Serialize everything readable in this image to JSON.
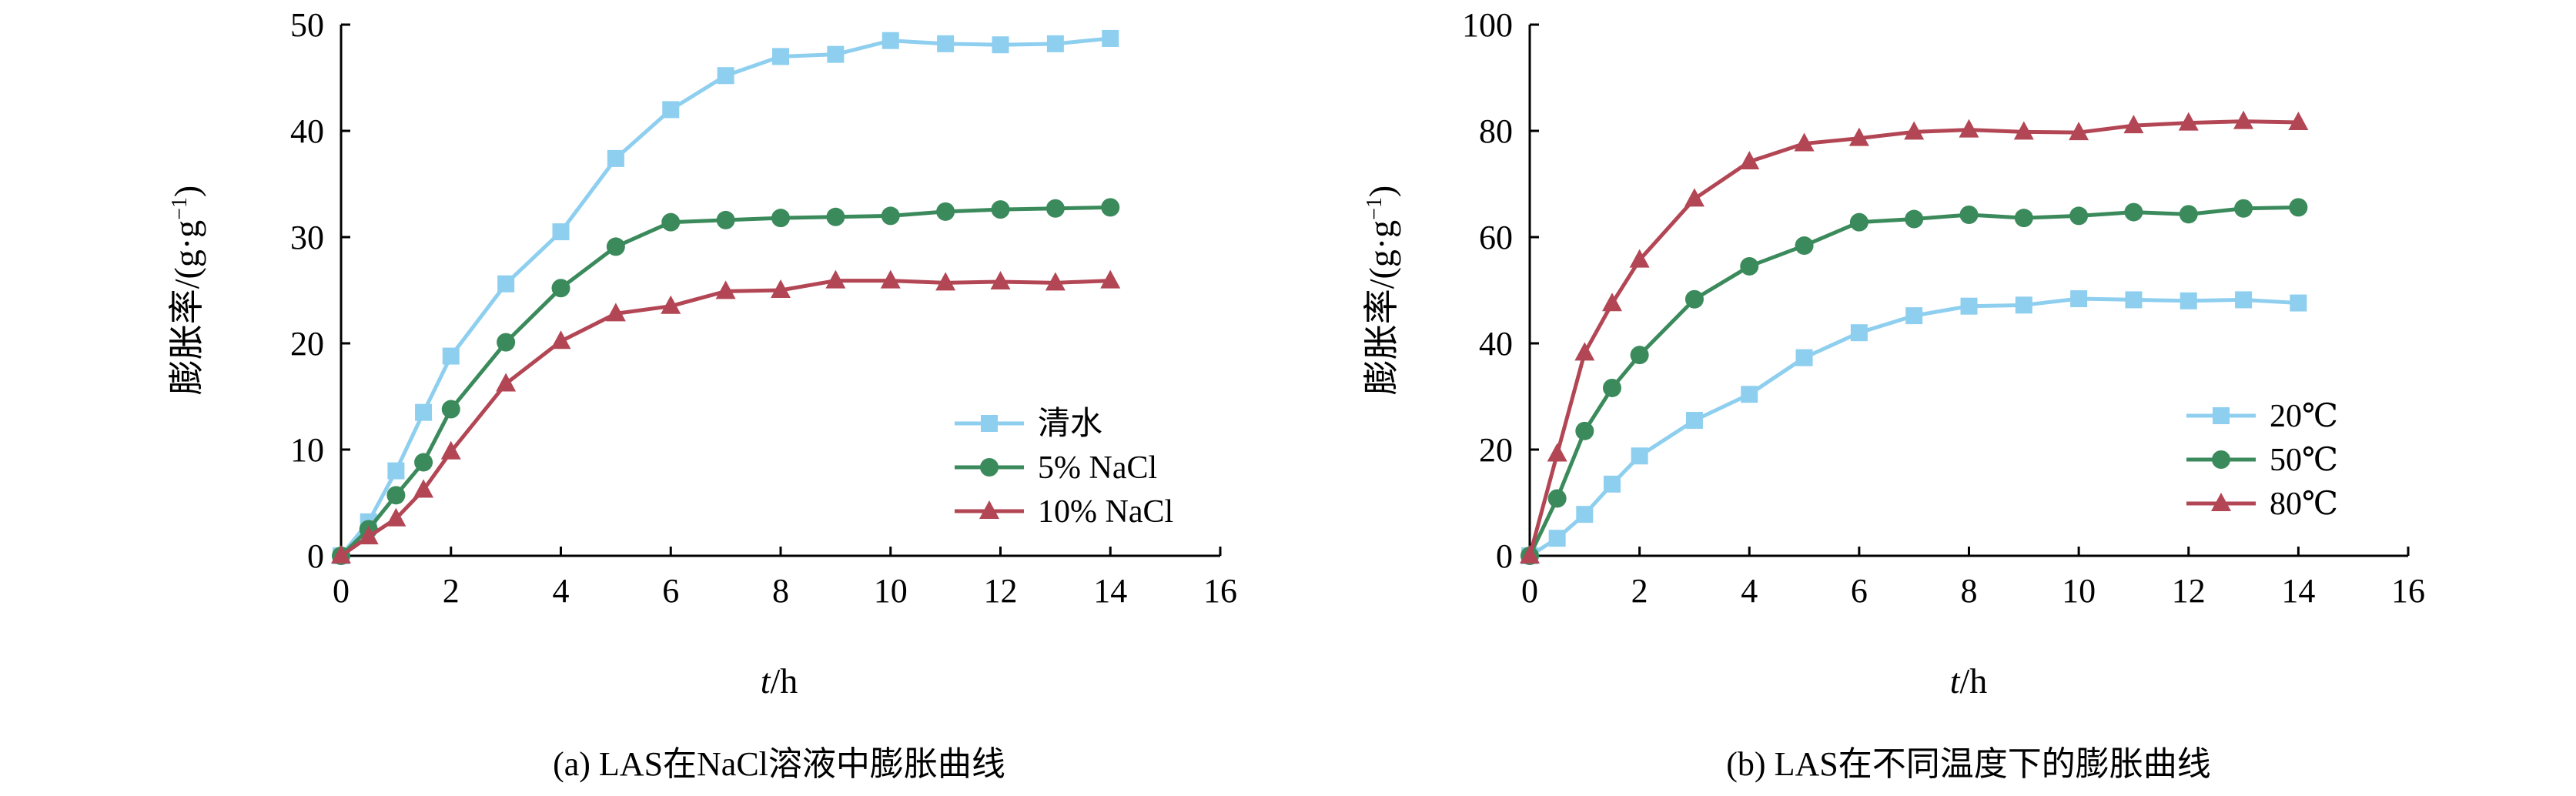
{
  "chart_data": [
    {
      "type": "line",
      "caption": "(a) LAS在NaCl溶液中膨胀曲线",
      "xlabel_italic": "t",
      "xlabel_unit": "/h",
      "ylabel": "膨胀率/(g·g",
      "ylabel_sup": "−1",
      "ylabel_close": ")",
      "xlim": [
        0,
        16
      ],
      "ylim": [
        0,
        50
      ],
      "xticks": [
        0,
        2,
        4,
        6,
        8,
        10,
        12,
        14,
        16
      ],
      "yticks": [
        0,
        10,
        20,
        30,
        40,
        50
      ],
      "legend_position": "lower-right",
      "series": [
        {
          "name": "清水",
          "color": "#8ecfef",
          "marker": "square",
          "x": [
            0,
            0.5,
            1,
            1.5,
            2,
            3,
            4,
            5,
            6,
            7,
            8,
            9,
            10,
            11,
            12,
            13,
            14
          ],
          "y": [
            0,
            3.2,
            8.0,
            13.5,
            18.8,
            25.6,
            30.5,
            37.4,
            42.0,
            45.2,
            47.0,
            47.2,
            48.5,
            48.2,
            48.1,
            48.2,
            48.7
          ]
        },
        {
          "name": "5% NaCl",
          "color": "#3b8a5c",
          "marker": "circle",
          "x": [
            0,
            0.5,
            1,
            1.5,
            2,
            3,
            4,
            5,
            6,
            7,
            8,
            9,
            10,
            11,
            12,
            13,
            14
          ],
          "y": [
            0,
            2.5,
            5.7,
            8.8,
            13.8,
            20.1,
            25.2,
            29.1,
            31.4,
            31.6,
            31.8,
            31.9,
            32.0,
            32.4,
            32.6,
            32.7,
            32.8
          ]
        },
        {
          "name": "10% NaCl",
          "color": "#b34654",
          "marker": "triangle",
          "x": [
            0,
            0.5,
            1,
            1.5,
            2,
            3,
            4,
            5,
            6,
            7,
            8,
            9,
            10,
            11,
            12,
            13,
            14
          ],
          "y": [
            0,
            1.8,
            3.5,
            6.2,
            9.8,
            16.2,
            20.2,
            22.8,
            23.5,
            24.9,
            25.0,
            25.9,
            25.9,
            25.7,
            25.8,
            25.7,
            25.9
          ]
        }
      ]
    },
    {
      "type": "line",
      "caption": "(b) LAS在不同温度下的膨胀曲线",
      "xlabel_italic": "t",
      "xlabel_unit": "/h",
      "ylabel": "膨胀率/(g·g",
      "ylabel_sup": "−1",
      "ylabel_close": ")",
      "xlim": [
        0,
        16
      ],
      "ylim": [
        0,
        100
      ],
      "xticks": [
        0,
        2,
        4,
        6,
        8,
        10,
        12,
        14,
        16
      ],
      "yticks": [
        0,
        20,
        40,
        60,
        80,
        100
      ],
      "legend_position": "lower-right",
      "series": [
        {
          "name": "20℃",
          "color": "#8ecfef",
          "marker": "square",
          "x": [
            0,
            0.5,
            1,
            1.5,
            2,
            3,
            4,
            5,
            6,
            7,
            8,
            9,
            10,
            11,
            12,
            13,
            14
          ],
          "y": [
            0,
            3.3,
            7.8,
            13.5,
            18.8,
            25.5,
            30.4,
            37.3,
            42.0,
            45.2,
            47.0,
            47.2,
            48.4,
            48.2,
            48.0,
            48.2,
            47.6
          ]
        },
        {
          "name": "50℃",
          "color": "#3b8a5c",
          "marker": "circle",
          "x": [
            0,
            0.5,
            1,
            1.5,
            2,
            3,
            4,
            5,
            6,
            7,
            8,
            9,
            10,
            11,
            12,
            13,
            14
          ],
          "y": [
            0,
            10.8,
            23.5,
            31.6,
            37.8,
            48.3,
            54.5,
            58.4,
            62.8,
            63.4,
            64.2,
            63.6,
            64.0,
            64.7,
            64.3,
            65.4,
            65.6
          ]
        },
        {
          "name": "80℃",
          "color": "#b34654",
          "marker": "triangle",
          "x": [
            0,
            0.5,
            1,
            1.5,
            2,
            3,
            4,
            5,
            6,
            7,
            8,
            9,
            10,
            11,
            12,
            13,
            14
          ],
          "y": [
            0,
            19.2,
            38.2,
            47.5,
            55.7,
            67.2,
            74.2,
            77.6,
            78.6,
            79.8,
            80.2,
            79.8,
            79.7,
            81.0,
            81.5,
            81.8,
            81.6
          ]
        }
      ]
    }
  ]
}
